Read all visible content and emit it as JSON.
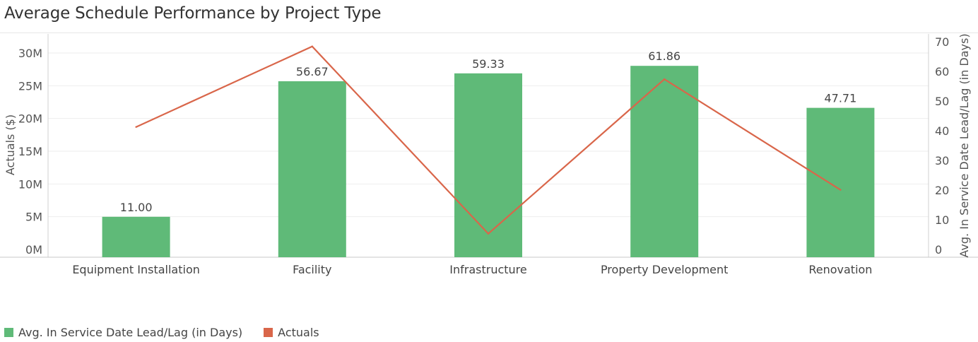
{
  "title": "Average Schedule Performance by Project Type",
  "chart_data": {
    "type": "bar",
    "categories": [
      "Equipment Installation",
      "Facility",
      "Infrastructure",
      "Property Development",
      "Renovation"
    ],
    "series": [
      {
        "name": "Avg. In Service Date Lead/Lag (in Days)",
        "kind": "bar",
        "axis": "right",
        "color": "#5fba78",
        "values": [
          11.0,
          56.67,
          59.33,
          61.86,
          47.71
        ],
        "labels": [
          "11.00",
          "56.67",
          "59.33",
          "61.86",
          "47.71"
        ]
      },
      {
        "name": "Actuals",
        "kind": "line",
        "axis": "left",
        "color": "#d9664a",
        "values": [
          18700000,
          31000000,
          2400000,
          26000000,
          9100000
        ]
      }
    ],
    "left_axis": {
      "label": "Actuals ($)",
      "ylim": [
        0,
        32000000
      ],
      "ticks": [
        0,
        5000000,
        10000000,
        15000000,
        20000000,
        25000000,
        30000000
      ],
      "tick_labels": [
        "0M",
        "5M",
        "10M",
        "15M",
        "20M",
        "25M",
        "30M"
      ]
    },
    "right_axis": {
      "label": "Avg. In Service Date Lead/Lag (in Days)",
      "ylim": [
        0,
        70
      ],
      "ticks": [
        0,
        10,
        20,
        30,
        40,
        50,
        60,
        70
      ],
      "tick_labels": [
        "0",
        "10",
        "20",
        "30",
        "40",
        "50",
        "60",
        "70"
      ]
    },
    "grid": true,
    "legend_position": "bottom-left"
  }
}
